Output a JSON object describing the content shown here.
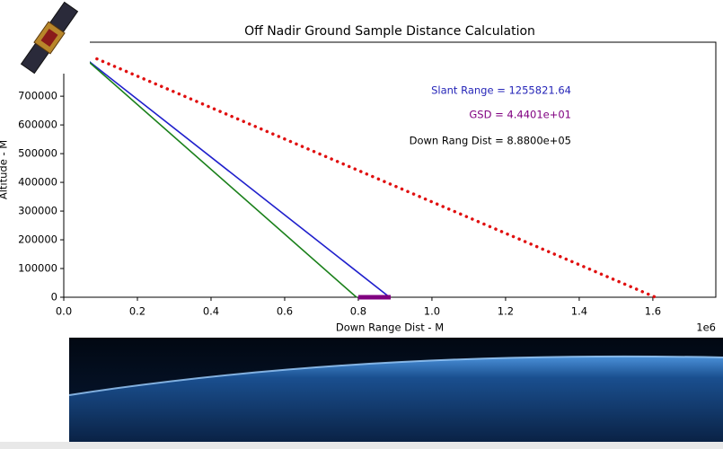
{
  "chart_data": {
    "type": "line",
    "title": "Off Nadir Ground Sample Distance Calculation",
    "xlabel": "Down Range Dist - M",
    "ylabel": "Altitude - M",
    "x_offset_label": "1e6",
    "annotations": [
      {
        "text": "Slant Range = 1255821.64",
        "color": "#2626b8"
      },
      {
        "text": "GSD = 4.4401e+01",
        "color": "#800080"
      },
      {
        "text": "Down Rang Dist = 8.8800e+05",
        "color": "#000000"
      }
    ],
    "series": [
      {
        "color": "#1f1fcc",
        "style": "solid",
        "width": 1.6,
        "x": [
          50000,
          885000
        ],
        "values": [
          840000,
          0
        ]
      },
      {
        "color": "#1a801a",
        "style": "solid",
        "width": 1.6,
        "x": [
          50000,
          795000
        ],
        "values": [
          840000,
          0
        ]
      },
      {
        "color": "#e01010",
        "style": "dotted",
        "width": 3.5,
        "x": [
          90000,
          1607000
        ],
        "values": [
          830000,
          0
        ]
      },
      {
        "color": "#800080",
        "style": "solid",
        "width": 5,
        "x": [
          800000,
          888000
        ],
        "values": [
          0,
          0
        ]
      }
    ],
    "xlim": [
      0,
      1771000
    ],
    "ylim": [
      0,
      888000
    ],
    "xticks": [
      {
        "value": 0,
        "label": "0.0"
      },
      {
        "value": 200000,
        "label": "0.2"
      },
      {
        "value": 400000,
        "label": "0.4"
      },
      {
        "value": 600000,
        "label": "0.6"
      },
      {
        "value": 800000,
        "label": "0.8"
      },
      {
        "value": 1000000,
        "label": "1.0"
      },
      {
        "value": 1200000,
        "label": "1.2"
      },
      {
        "value": 1400000,
        "label": "1.4"
      },
      {
        "value": 1600000,
        "label": "1.6"
      }
    ],
    "yticks": [
      0,
      100000,
      200000,
      300000,
      400000,
      500000,
      600000,
      700000
    ],
    "grid": false
  }
}
